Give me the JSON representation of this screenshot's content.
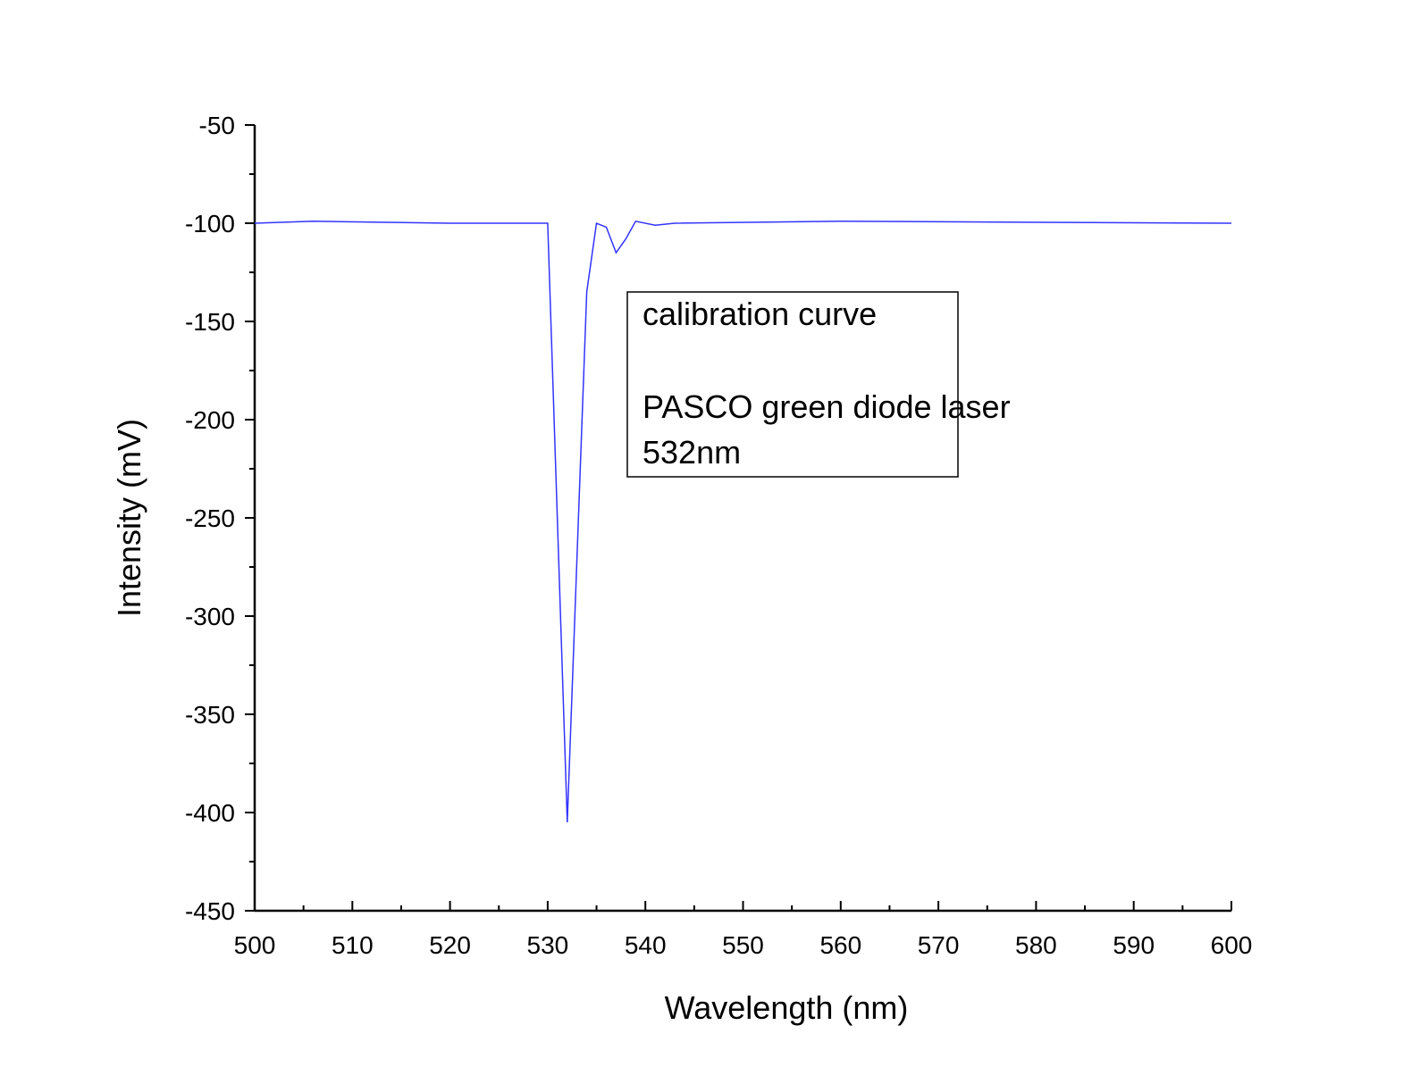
{
  "chart_data": {
    "type": "line",
    "title": "",
    "xlabel": "Wavelength (nm)",
    "ylabel": "Intensity (mV)",
    "xlim": [
      500,
      600
    ],
    "ylim": [
      -450,
      -50
    ],
    "x_ticks": [
      500,
      510,
      520,
      530,
      540,
      550,
      560,
      570,
      580,
      590,
      600
    ],
    "y_ticks": [
      -50,
      -100,
      -150,
      -200,
      -250,
      -300,
      -350,
      -400,
      -450
    ],
    "x_tick_labels": [
      "500",
      "510",
      "520",
      "530",
      "540",
      "550",
      "560",
      "570",
      "580",
      "590",
      "600"
    ],
    "y_tick_labels": [
      "-50",
      "-100",
      "-150",
      "-200",
      "-250",
      "-300",
      "-350",
      "-400",
      "-450"
    ],
    "grid": false,
    "series": [
      {
        "color": "#3333ff",
        "x": [
          500,
          506,
          520,
          530,
          532,
          534,
          535,
          536,
          537,
          538,
          539,
          541,
          543,
          560,
          600
        ],
        "y": [
          -100,
          -99,
          -100,
          -100,
          -405,
          -135,
          -100,
          -102,
          -115,
          -108,
          -99,
          -101,
          -100,
          -99,
          -100
        ]
      }
    ],
    "annotation": {
      "lines": [
        "calibration curve",
        "",
        "PASCO green diode laser",
        "532nm"
      ]
    }
  }
}
